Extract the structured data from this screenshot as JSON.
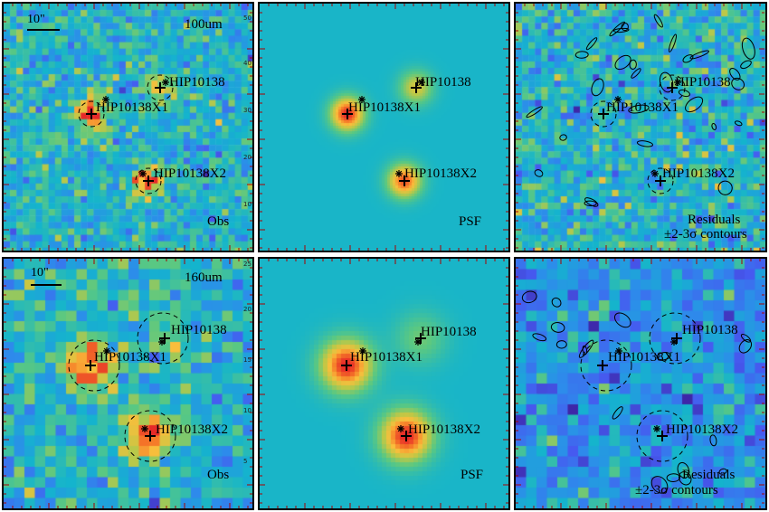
{
  "rows": [
    {
      "band": "100um",
      "scale": "10\"",
      "obs_label": "Obs",
      "psf_label": "PSF",
      "res_label": "Residuals",
      "res_sub": "±2-3σ contours",
      "axis_ticks": [
        "50",
        "40",
        "30",
        "20",
        "10"
      ],
      "sources": [
        {
          "name": "HIP10138"
        },
        {
          "name": "HIP10138X1"
        },
        {
          "name": "HIP10138X2"
        }
      ]
    },
    {
      "band": "160um",
      "scale": "10\"",
      "obs_label": "Obs",
      "psf_label": "PSF",
      "res_label": "Residuals",
      "res_sub": "±2-3σ contours",
      "axis_ticks": [
        "25",
        "20",
        "15",
        "10",
        "5"
      ],
      "sources": [
        {
          "name": "HIP10138"
        },
        {
          "name": "HIP10138X1"
        },
        {
          "name": "HIP10138X2"
        }
      ]
    }
  ]
}
